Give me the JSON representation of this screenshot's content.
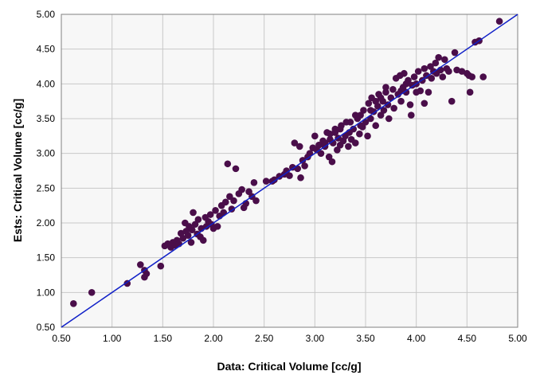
{
  "colors": {
    "plot_background": "#f7f7f7",
    "gridline": "#c8c8c8",
    "point": "#4a0e4a",
    "identity_line": "#1020c8"
  },
  "chart_data": {
    "type": "scatter",
    "xlabel": "Data: Critical Volume [cc/g]",
    "ylabel": "Ests: Critical Volume [cc/g]",
    "xlim": [
      0.5,
      5.0
    ],
    "ylim": [
      0.5,
      5.0
    ],
    "x_ticks": [
      "0.50",
      "1.00",
      "1.50",
      "2.00",
      "2.50",
      "3.00",
      "3.50",
      "4.00",
      "4.50",
      "5.00"
    ],
    "y_ticks": [
      "0.50",
      "1.00",
      "1.50",
      "2.00",
      "2.50",
      "3.00",
      "3.50",
      "4.00",
      "4.50",
      "5.00"
    ],
    "grid": true,
    "reference_line": {
      "from": [
        0.5,
        0.5
      ],
      "to": [
        5.0,
        5.0
      ]
    },
    "points": [
      [
        0.62,
        0.84
      ],
      [
        0.8,
        1.0
      ],
      [
        1.15,
        1.13
      ],
      [
        1.28,
        1.4
      ],
      [
        1.32,
        1.22
      ],
      [
        1.34,
        1.27
      ],
      [
        1.32,
        1.32
      ],
      [
        1.48,
        1.38
      ],
      [
        1.52,
        1.67
      ],
      [
        1.55,
        1.7
      ],
      [
        1.58,
        1.65
      ],
      [
        1.6,
        1.72
      ],
      [
        1.62,
        1.68
      ],
      [
        1.64,
        1.75
      ],
      [
        1.66,
        1.7
      ],
      [
        1.68,
        1.85
      ],
      [
        1.7,
        1.78
      ],
      [
        1.72,
        2.0
      ],
      [
        1.73,
        1.88
      ],
      [
        1.75,
        1.82
      ],
      [
        1.76,
        1.95
      ],
      [
        1.78,
        1.72
      ],
      [
        1.79,
        1.9
      ],
      [
        1.8,
        2.15
      ],
      [
        1.82,
        1.98
      ],
      [
        1.84,
        1.84
      ],
      [
        1.85,
        2.05
      ],
      [
        1.87,
        1.8
      ],
      [
        1.88,
        1.92
      ],
      [
        1.9,
        1.75
      ],
      [
        1.92,
        2.08
      ],
      [
        1.93,
        1.95
      ],
      [
        1.95,
        2.02
      ],
      [
        1.97,
        2.12
      ],
      [
        1.98,
        1.98
      ],
      [
        2.0,
        1.92
      ],
      [
        2.02,
        2.18
      ],
      [
        2.04,
        1.95
      ],
      [
        2.06,
        2.1
      ],
      [
        2.08,
        2.25
      ],
      [
        2.1,
        2.15
      ],
      [
        2.12,
        2.3
      ],
      [
        2.14,
        2.85
      ],
      [
        2.16,
        2.38
      ],
      [
        2.18,
        2.2
      ],
      [
        2.2,
        2.32
      ],
      [
        2.22,
        2.78
      ],
      [
        2.25,
        2.42
      ],
      [
        2.28,
        2.48
      ],
      [
        2.3,
        2.22
      ],
      [
        2.32,
        2.28
      ],
      [
        2.35,
        2.45
      ],
      [
        2.38,
        2.38
      ],
      [
        2.4,
        2.58
      ],
      [
        2.42,
        2.32
      ],
      [
        2.52,
        2.6
      ],
      [
        2.58,
        2.6
      ],
      [
        2.65,
        2.67
      ],
      [
        2.7,
        2.7
      ],
      [
        2.72,
        2.75
      ],
      [
        2.75,
        2.68
      ],
      [
        2.78,
        2.8
      ],
      [
        2.8,
        3.15
      ],
      [
        2.83,
        2.78
      ],
      [
        2.85,
        3.1
      ],
      [
        2.86,
        2.65
      ],
      [
        2.88,
        2.9
      ],
      [
        2.9,
        2.82
      ],
      [
        2.93,
        2.95
      ],
      [
        2.95,
        3.0
      ],
      [
        2.98,
        3.08
      ],
      [
        3.0,
        3.25
      ],
      [
        3.02,
        3.05
      ],
      [
        3.04,
        3.12
      ],
      [
        3.06,
        3.0
      ],
      [
        3.08,
        3.18
      ],
      [
        3.1,
        3.1
      ],
      [
        3.12,
        3.3
      ],
      [
        3.14,
        2.95
      ],
      [
        3.15,
        3.2
      ],
      [
        3.17,
        2.88
      ],
      [
        3.18,
        3.15
      ],
      [
        3.2,
        3.35
      ],
      [
        3.22,
        3.05
      ],
      [
        3.23,
        3.22
      ],
      [
        3.25,
        3.12
      ],
      [
        3.26,
        3.4
      ],
      [
        3.28,
        3.18
      ],
      [
        3.3,
        3.25
      ],
      [
        3.31,
        3.45
      ],
      [
        3.33,
        3.1
      ],
      [
        3.34,
        3.3
      ],
      [
        3.36,
        3.2
      ],
      [
        3.38,
        3.35
      ],
      [
        3.4,
        3.15
      ],
      [
        3.42,
        3.5
      ],
      [
        3.44,
        3.28
      ],
      [
        3.45,
        3.55
      ],
      [
        3.47,
        3.38
      ],
      [
        3.48,
        3.62
      ],
      [
        3.5,
        3.45
      ],
      [
        3.52,
        3.25
      ],
      [
        3.53,
        3.72
      ],
      [
        3.55,
        3.5
      ],
      [
        3.56,
        3.8
      ],
      [
        3.58,
        3.6
      ],
      [
        3.6,
        3.4
      ],
      [
        3.62,
        3.68
      ],
      [
        3.63,
        3.85
      ],
      [
        3.65,
        3.55
      ],
      [
        3.67,
        3.75
      ],
      [
        3.68,
        3.62
      ],
      [
        3.7,
        3.88
      ],
      [
        3.72,
        3.7
      ],
      [
        3.73,
        3.5
      ],
      [
        3.75,
        3.8
      ],
      [
        3.77,
        3.92
      ],
      [
        3.78,
        3.65
      ],
      [
        3.8,
        4.08
      ],
      [
        3.82,
        3.85
      ],
      [
        3.84,
        4.12
      ],
      [
        3.85,
        3.75
      ],
      [
        3.87,
        3.95
      ],
      [
        3.88,
        4.15
      ],
      [
        3.9,
        3.88
      ],
      [
        3.92,
        4.05
      ],
      [
        3.94,
        3.7
      ],
      [
        3.96,
        3.98
      ],
      [
        3.98,
        4.1
      ],
      [
        4.0,
        4.0
      ],
      [
        4.02,
        4.18
      ],
      [
        4.04,
        3.9
      ],
      [
        4.06,
        4.05
      ],
      [
        4.08,
        4.22
      ],
      [
        4.1,
        4.12
      ],
      [
        4.12,
        3.88
      ],
      [
        4.14,
        4.25
      ],
      [
        4.15,
        4.08
      ],
      [
        4.17,
        4.18
      ],
      [
        4.19,
        4.3
      ],
      [
        4.2,
        4.15
      ],
      [
        4.22,
        4.38
      ],
      [
        4.24,
        4.2
      ],
      [
        4.26,
        4.1
      ],
      [
        4.28,
        4.35
      ],
      [
        4.3,
        4.22
      ],
      [
        4.32,
        4.18
      ],
      [
        4.35,
        3.75
      ],
      [
        4.38,
        4.45
      ],
      [
        4.4,
        4.2
      ],
      [
        4.45,
        4.18
      ],
      [
        4.5,
        4.15
      ],
      [
        4.52,
        4.12
      ],
      [
        4.55,
        4.1
      ],
      [
        4.53,
        3.88
      ],
      [
        4.58,
        4.6
      ],
      [
        4.62,
        4.62
      ],
      [
        4.66,
        4.1
      ],
      [
        4.82,
        4.9
      ],
      [
        4.0,
        3.88
      ],
      [
        3.95,
        3.55
      ],
      [
        4.08,
        3.72
      ],
      [
        3.1,
        3.15
      ],
      [
        3.4,
        3.55
      ],
      [
        3.6,
        3.75
      ],
      [
        3.2,
        3.3
      ],
      [
        2.6,
        2.62
      ],
      [
        3.7,
        3.95
      ],
      [
        3.45,
        3.4
      ],
      [
        3.15,
        3.28
      ],
      [
        3.35,
        3.45
      ],
      [
        3.55,
        3.62
      ],
      [
        3.25,
        3.35
      ],
      [
        3.65,
        3.8
      ],
      [
        3.9,
        4.0
      ],
      [
        3.85,
        3.9
      ]
    ]
  }
}
